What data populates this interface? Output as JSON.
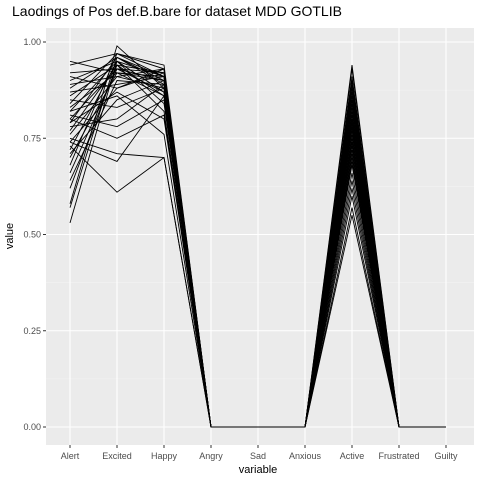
{
  "chart_data": {
    "type": "line",
    "title": "Laodings of Pos def.B.bare for dataset MDD GOTLIB",
    "xlabel": "variable",
    "ylabel": "value",
    "ylim": [
      0,
      1
    ],
    "categories": [
      "Alert",
      "Excited",
      "Happy",
      "Angry",
      "Sad",
      "Anxious",
      "Active",
      "Frustrated",
      "Guilty"
    ],
    "y_ticks": [
      0.0,
      0.25,
      0.5,
      0.75,
      1.0
    ],
    "y_tick_labels": [
      "0.00",
      "0.25",
      "0.50",
      "0.75",
      "1.00"
    ],
    "grid": true,
    "legend": "none",
    "line_color": "#000000",
    "panel_background": "#ebebeb",
    "series": [
      {
        "values": [
          0.53,
          0.95,
          0.91,
          0,
          0,
          0,
          0.55,
          0,
          0
        ]
      },
      {
        "values": [
          0.57,
          0.96,
          0.9,
          0,
          0,
          0,
          0.57,
          0,
          0
        ]
      },
      {
        "values": [
          0.58,
          0.99,
          0.88,
          0,
          0,
          0,
          0.6,
          0,
          0
        ]
      },
      {
        "values": [
          0.62,
          0.94,
          0.92,
          0,
          0,
          0,
          0.62,
          0,
          0
        ]
      },
      {
        "values": [
          0.64,
          0.9,
          0.89,
          0,
          0,
          0,
          0.64,
          0,
          0
        ]
      },
      {
        "values": [
          0.66,
          0.93,
          0.87,
          0,
          0,
          0,
          0.66,
          0,
          0
        ]
      },
      {
        "values": [
          0.68,
          0.97,
          0.91,
          0,
          0,
          0,
          0.68,
          0,
          0
        ]
      },
      {
        "values": [
          0.7,
          0.92,
          0.86,
          0,
          0,
          0,
          0.69,
          0,
          0
        ]
      },
      {
        "values": [
          0.71,
          0.85,
          0.9,
          0,
          0,
          0,
          0.7,
          0,
          0
        ]
      },
      {
        "values": [
          0.72,
          0.95,
          0.84,
          0,
          0,
          0,
          0.71,
          0,
          0
        ]
      },
      {
        "values": [
          0.73,
          0.61,
          0.7,
          0,
          0,
          0,
          0.72,
          0,
          0
        ]
      },
      {
        "values": [
          0.74,
          0.88,
          0.93,
          0,
          0,
          0,
          0.73,
          0,
          0
        ]
      },
      {
        "values": [
          0.75,
          0.71,
          0.7,
          0,
          0,
          0,
          0.74,
          0,
          0
        ]
      },
      {
        "values": [
          0.76,
          0.91,
          0.88,
          0,
          0,
          0,
          0.75,
          0,
          0
        ]
      },
      {
        "values": [
          0.77,
          0.94,
          0.82,
          0,
          0,
          0,
          0.76,
          0,
          0
        ]
      },
      {
        "values": [
          0.78,
          0.8,
          0.89,
          0,
          0,
          0,
          0.77,
          0,
          0
        ]
      },
      {
        "values": [
          0.79,
          0.96,
          0.91,
          0,
          0,
          0,
          0.78,
          0,
          0
        ]
      },
      {
        "values": [
          0.79,
          0.87,
          0.8,
          0,
          0,
          0,
          0.78,
          0,
          0
        ]
      },
      {
        "values": [
          0.8,
          0.93,
          0.92,
          0,
          0,
          0,
          0.79,
          0,
          0
        ]
      },
      {
        "values": [
          0.81,
          0.78,
          0.85,
          0,
          0,
          0,
          0.8,
          0,
          0
        ]
      },
      {
        "values": [
          0.82,
          0.95,
          0.87,
          0,
          0,
          0,
          0.8,
          0,
          0
        ]
      },
      {
        "values": [
          0.82,
          0.86,
          0.76,
          0,
          0,
          0,
          0.81,
          0,
          0
        ]
      },
      {
        "values": [
          0.83,
          0.92,
          0.9,
          0,
          0,
          0,
          0.82,
          0,
          0
        ]
      },
      {
        "values": [
          0.84,
          0.97,
          0.93,
          0,
          0,
          0,
          0.83,
          0,
          0
        ]
      },
      {
        "values": [
          0.85,
          0.83,
          0.88,
          0,
          0,
          0,
          0.84,
          0,
          0
        ]
      },
      {
        "values": [
          0.86,
          0.94,
          0.86,
          0,
          0,
          0,
          0.85,
          0,
          0
        ]
      },
      {
        "values": [
          0.87,
          0.89,
          0.91,
          0,
          0,
          0,
          0.86,
          0,
          0
        ]
      },
      {
        "values": [
          0.88,
          0.96,
          0.89,
          0,
          0,
          0,
          0.87,
          0,
          0
        ]
      },
      {
        "values": [
          0.89,
          0.91,
          0.93,
          0,
          0,
          0,
          0.88,
          0,
          0
        ]
      },
      {
        "values": [
          0.9,
          0.95,
          0.87,
          0,
          0,
          0,
          0.89,
          0,
          0
        ]
      },
      {
        "values": [
          0.91,
          0.88,
          0.92,
          0,
          0,
          0,
          0.9,
          0,
          0
        ]
      },
      {
        "values": [
          0.92,
          0.93,
          0.9,
          0,
          0,
          0,
          0.91,
          0,
          0
        ]
      },
      {
        "values": [
          0.94,
          0.97,
          0.94,
          0,
          0,
          0,
          0.93,
          0,
          0
        ]
      },
      {
        "values": [
          0.95,
          0.92,
          0.91,
          0,
          0,
          0,
          0.94,
          0,
          0
        ]
      },
      {
        "values": [
          0.74,
          0.69,
          0.86,
          0,
          0,
          0,
          0.74,
          0,
          0
        ]
      },
      {
        "values": [
          0.8,
          0.75,
          0.81,
          0,
          0,
          0,
          0.79,
          0,
          0
        ]
      }
    ]
  }
}
